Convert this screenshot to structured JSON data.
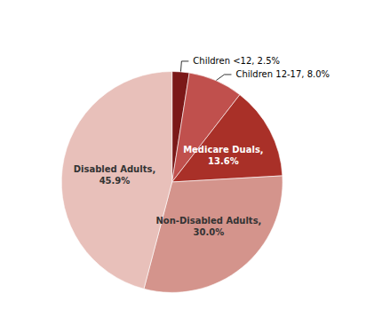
{
  "chart_data": {
    "type": "pie",
    "values": [
      2.5,
      8.0,
      13.6,
      30.0,
      45.9
    ],
    "value_labels": [
      "Children <12, 2.5%",
      "Children 12-17, 8.0%",
      "Medicare Duals,\n13.6%",
      "Non-Disabled Adults,\n30.0%",
      "Disabled Adults,\n45.9%"
    ],
    "colors": [
      "#7B1818",
      "#C0504D",
      "#A93028",
      "#D4948C",
      "#E8C0BA"
    ],
    "data_labels": true,
    "legend": false
  }
}
